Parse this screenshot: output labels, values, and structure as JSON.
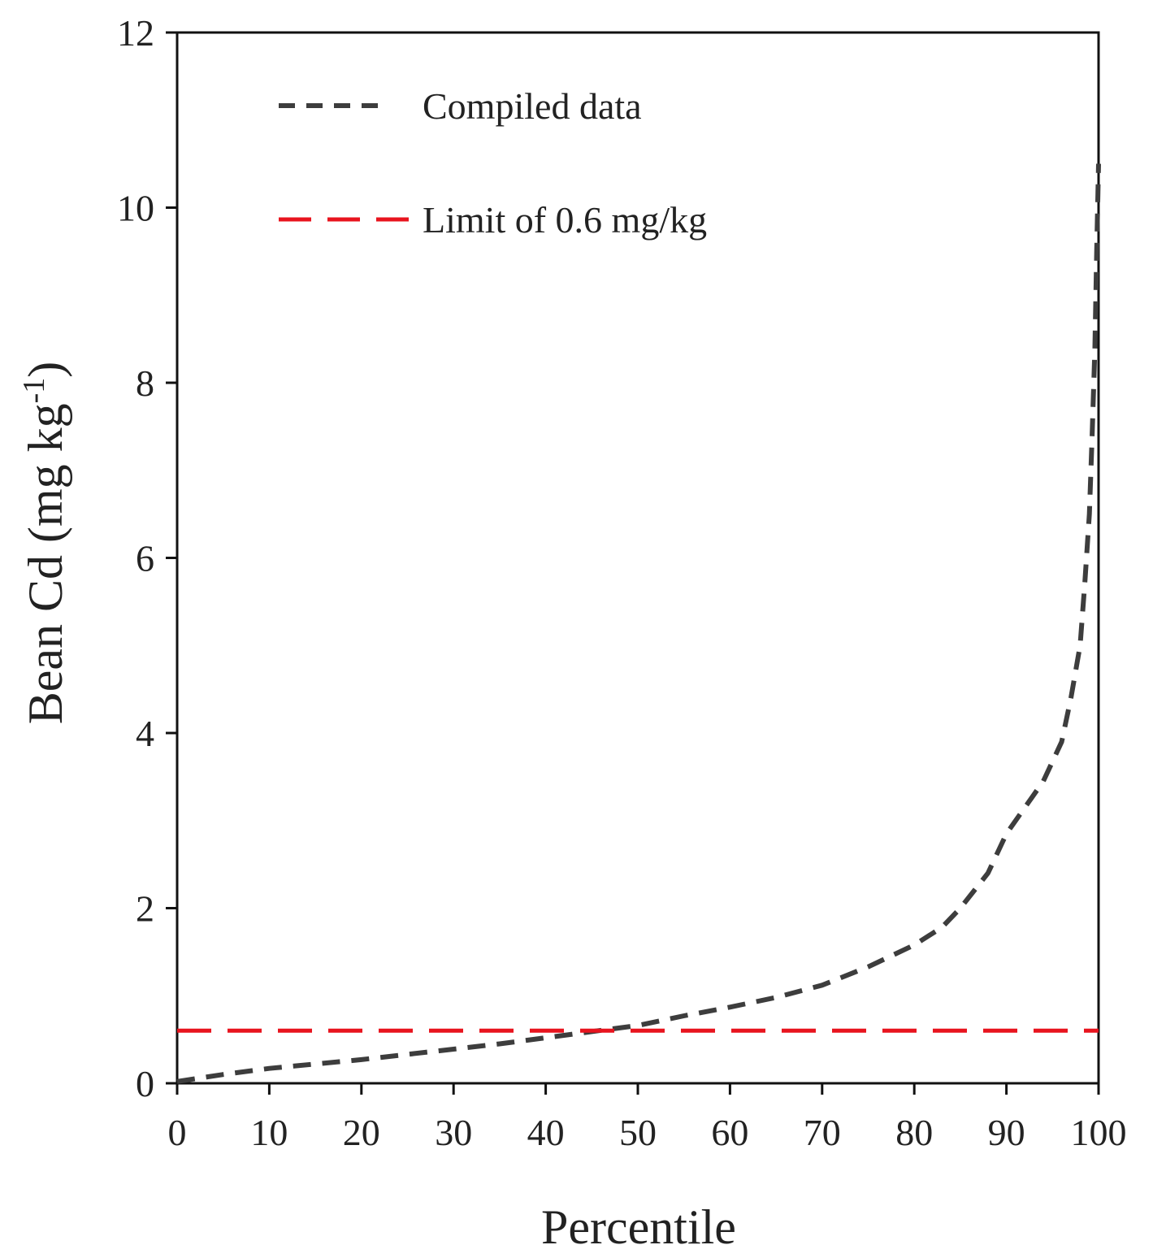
{
  "chart_data": {
    "type": "line",
    "xlabel": "Percentile",
    "ylabel_main": "Bean Cd (mg kg",
    "ylabel_sup": "-1",
    "ylabel_end": ")",
    "xlim": [
      0,
      100
    ],
    "ylim": [
      0,
      12
    ],
    "xticks": [
      0,
      10,
      20,
      30,
      40,
      50,
      60,
      70,
      80,
      90,
      100
    ],
    "yticks": [
      0,
      2,
      4,
      6,
      8,
      10,
      12
    ],
    "grid": false,
    "legend_position": "top-left",
    "series": [
      {
        "name": "Compiled data",
        "color": "#3d3d3d",
        "style": "dashed",
        "x": [
          0,
          5,
          10,
          15,
          20,
          25,
          30,
          35,
          40,
          45,
          50,
          55,
          60,
          65,
          70,
          75,
          80,
          83,
          85,
          88,
          90,
          92,
          94,
          96,
          97,
          98,
          98.5,
          99,
          99.3,
          99.6,
          99.8,
          100
        ],
        "y": [
          0.02,
          0.1,
          0.17,
          0.22,
          0.27,
          0.33,
          0.39,
          0.45,
          0.52,
          0.59,
          0.66,
          0.77,
          0.87,
          0.98,
          1.12,
          1.33,
          1.58,
          1.78,
          2.0,
          2.4,
          2.85,
          3.15,
          3.45,
          3.9,
          4.4,
          5.0,
          5.7,
          6.5,
          7.4,
          8.4,
          9.5,
          10.5
        ]
      },
      {
        "name": "Limit of 0.6 mg/kg",
        "color": "#e8141e",
        "style": "longdash",
        "x": [
          0,
          100
        ],
        "y": [
          0.6,
          0.6
        ]
      }
    ]
  }
}
